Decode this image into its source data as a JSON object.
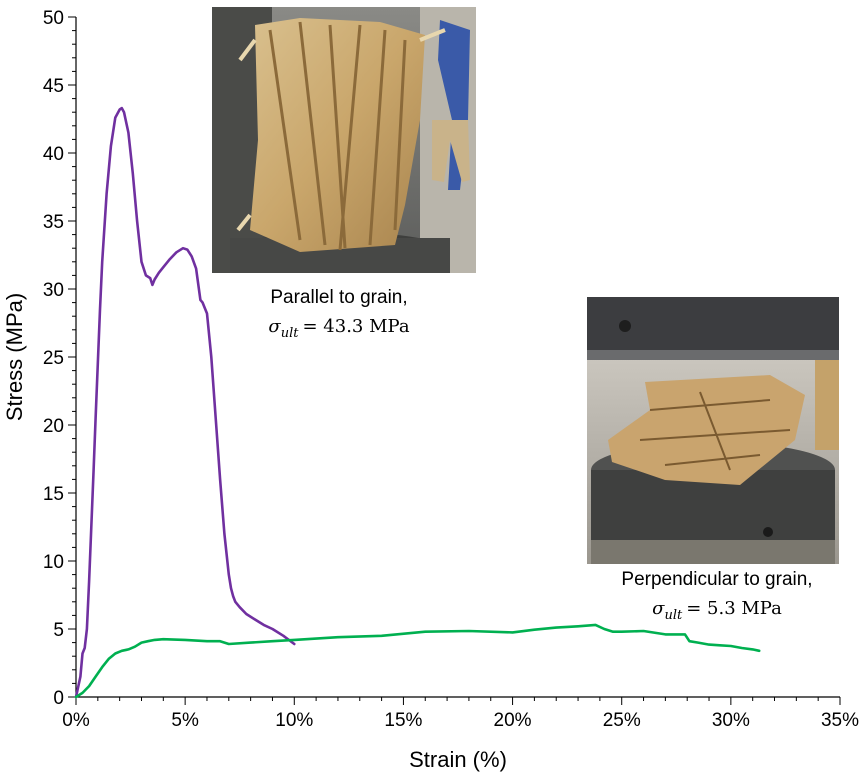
{
  "chart_data": {
    "type": "line",
    "xlabel": "Strain (%)",
    "ylabel": "Stress (MPa)",
    "xlim": [
      0,
      35
    ],
    "ylim": [
      0,
      50
    ],
    "x_ticks": [
      0,
      5,
      10,
      15,
      20,
      25,
      30,
      35
    ],
    "x_tick_labels": [
      "0%",
      "5%",
      "10%",
      "15%",
      "20%",
      "25%",
      "30%",
      "35%"
    ],
    "y_ticks": [
      0,
      5,
      10,
      15,
      20,
      25,
      30,
      35,
      40,
      45,
      50
    ],
    "y_tick_labels": [
      "0",
      "5",
      "10",
      "15",
      "20",
      "25",
      "30",
      "35",
      "40",
      "45",
      "50"
    ],
    "grid": false,
    "legend": "none",
    "series": [
      {
        "color": "#7030a0",
        "x": [
          0,
          0.2,
          0.3,
          0.4,
          0.5,
          0.6,
          0.7,
          0.8,
          0.9,
          1.0,
          1.1,
          1.2,
          1.4,
          1.6,
          1.8,
          2.0,
          2.1,
          2.2,
          2.4,
          2.6,
          2.8,
          3.0,
          3.2,
          3.4,
          3.5,
          3.6,
          3.8,
          4.0,
          4.3,
          4.6,
          4.9,
          5.1,
          5.3,
          5.5,
          5.7,
          5.8,
          6.0,
          6.2,
          6.4,
          6.6,
          6.8,
          6.9,
          7.0,
          7.1,
          7.2,
          7.3,
          7.5,
          7.8,
          8.2,
          8.6,
          9.0,
          9.5,
          10.0
        ],
        "y": [
          0,
          1.5,
          3.2,
          3.6,
          5.0,
          8.5,
          12.5,
          16.5,
          20.5,
          24.5,
          28.5,
          32.0,
          37.0,
          40.5,
          42.6,
          43.2,
          43.3,
          43.0,
          41.5,
          38.5,
          35.0,
          32.0,
          31.0,
          30.8,
          30.3,
          30.7,
          31.2,
          31.6,
          32.2,
          32.7,
          33.0,
          32.9,
          32.4,
          31.5,
          29.2,
          29.0,
          28.2,
          25.0,
          20.5,
          16.0,
          12.0,
          10.5,
          9.0,
          8.0,
          7.4,
          7.0,
          6.6,
          6.1,
          5.7,
          5.3,
          5.0,
          4.5,
          3.9
        ]
      },
      {
        "color": "#00b050",
        "x": [
          0,
          0.3,
          0.6,
          0.9,
          1.2,
          1.5,
          1.8,
          2.1,
          2.4,
          2.7,
          3.0,
          3.3,
          3.6,
          4.0,
          5.0,
          6.0,
          6.6,
          7.0,
          8.0,
          9.0,
          10.0,
          12.0,
          14.0,
          16.0,
          18.0,
          20.0,
          21.0,
          22.0,
          23.0,
          23.8,
          24.2,
          24.6,
          25.0,
          26.0,
          27.0,
          27.9,
          28.1,
          28.5,
          29.0,
          29.5,
          30.0,
          30.5,
          31.0,
          31.3
        ],
        "y": [
          0,
          0.3,
          0.8,
          1.5,
          2.2,
          2.8,
          3.2,
          3.4,
          3.5,
          3.7,
          4.0,
          4.1,
          4.2,
          4.25,
          4.2,
          4.1,
          4.1,
          3.9,
          4.0,
          4.1,
          4.2,
          4.4,
          4.5,
          4.8,
          4.85,
          4.75,
          4.95,
          5.1,
          5.2,
          5.3,
          5.0,
          4.8,
          4.8,
          4.85,
          4.6,
          4.6,
          4.1,
          4.0,
          3.85,
          3.8,
          3.75,
          3.6,
          3.5,
          3.4
        ]
      }
    ],
    "annotations": [
      {
        "line1": "Parallel to grain,",
        "value": "= 43.3 MPa"
      },
      {
        "line1": "Perpendicular to grain,",
        "value": "= 5.3 MPa"
      }
    ],
    "sigma_symbol": "σ",
    "ult_subscript": "ult"
  }
}
